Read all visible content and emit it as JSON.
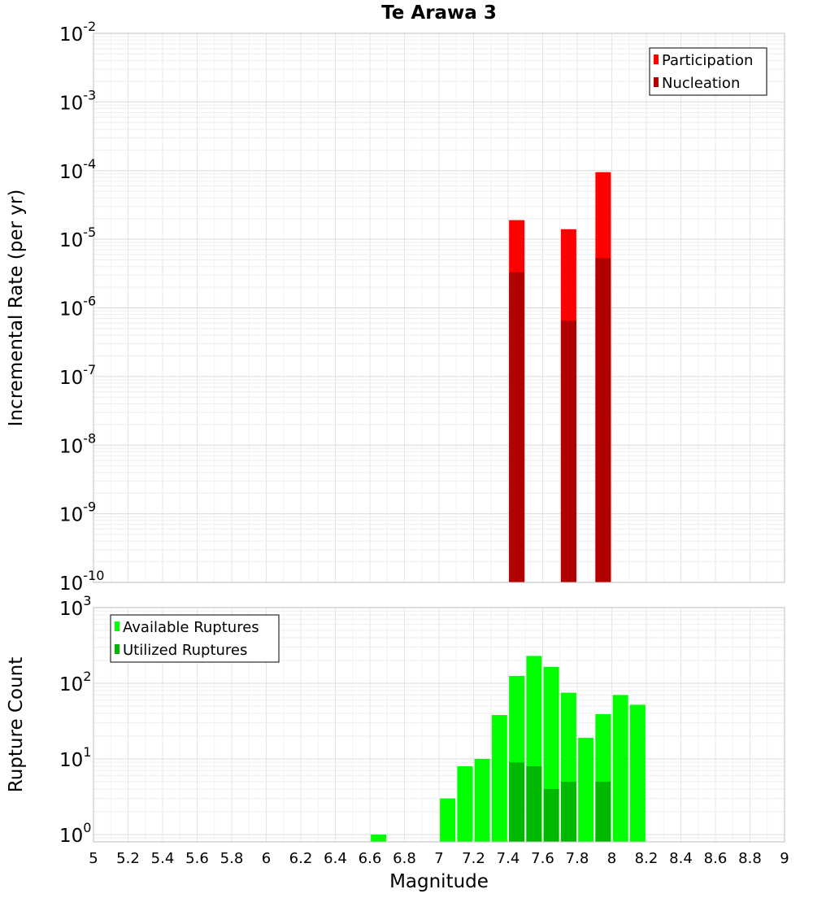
{
  "chart_data": [
    {
      "type": "bar",
      "title": "Te Arawa 3",
      "xlabel": "",
      "ylabel": "Incremental Rate (per yr)",
      "yscale": "log",
      "xlim": [
        5,
        9
      ],
      "ylim": [
        1e-10,
        0.01
      ],
      "y_tick_labels": [
        "10-10",
        "10-9",
        "10-8",
        "10-7",
        "10-6",
        "10-5",
        "10-4",
        "10-3",
        "10-2"
      ],
      "grid": true,
      "legend_position": "top-right",
      "x": [
        7.45,
        7.75,
        7.95
      ],
      "series": [
        {
          "name": "Participation",
          "color": "#ff0000",
          "values": [
            1.9e-05,
            1.4e-05,
            9.5e-05
          ]
        },
        {
          "name": "Nucleation",
          "color": "#b00000",
          "values": [
            3.3e-06,
            6.5e-07,
            5.3e-06
          ]
        }
      ]
    },
    {
      "type": "bar",
      "title": "",
      "xlabel": "Magnitude",
      "ylabel": "Rupture Count",
      "yscale": "log",
      "xlim": [
        5,
        9
      ],
      "ylim": [
        0.8,
        1000
      ],
      "y_tick_labels": [
        "100",
        "101",
        "102",
        "103"
      ],
      "x_tick_labels": [
        "5",
        "5.2",
        "5.4",
        "5.6",
        "5.8",
        "6",
        "6.2",
        "6.4",
        "6.6",
        "6.8",
        "7",
        "7.2",
        "7.4",
        "7.6",
        "7.8",
        "8",
        "8.2",
        "8.4",
        "8.6",
        "8.8",
        "9"
      ],
      "grid": true,
      "legend_position": "top-left",
      "x": [
        6.65,
        7.05,
        7.15,
        7.25,
        7.35,
        7.45,
        7.55,
        7.65,
        7.75,
        7.85,
        7.95,
        8.05,
        8.15
      ],
      "series": [
        {
          "name": "Available Ruptures",
          "color": "#00ff00",
          "values": [
            1,
            3,
            8,
            10,
            38,
            125,
            230,
            165,
            75,
            19,
            39,
            70,
            52
          ]
        },
        {
          "name": "Utilized Ruptures",
          "color": "#00b800",
          "values": [
            null,
            null,
            null,
            null,
            null,
            9,
            8,
            4,
            5,
            null,
            5,
            null,
            null
          ]
        }
      ]
    }
  ]
}
